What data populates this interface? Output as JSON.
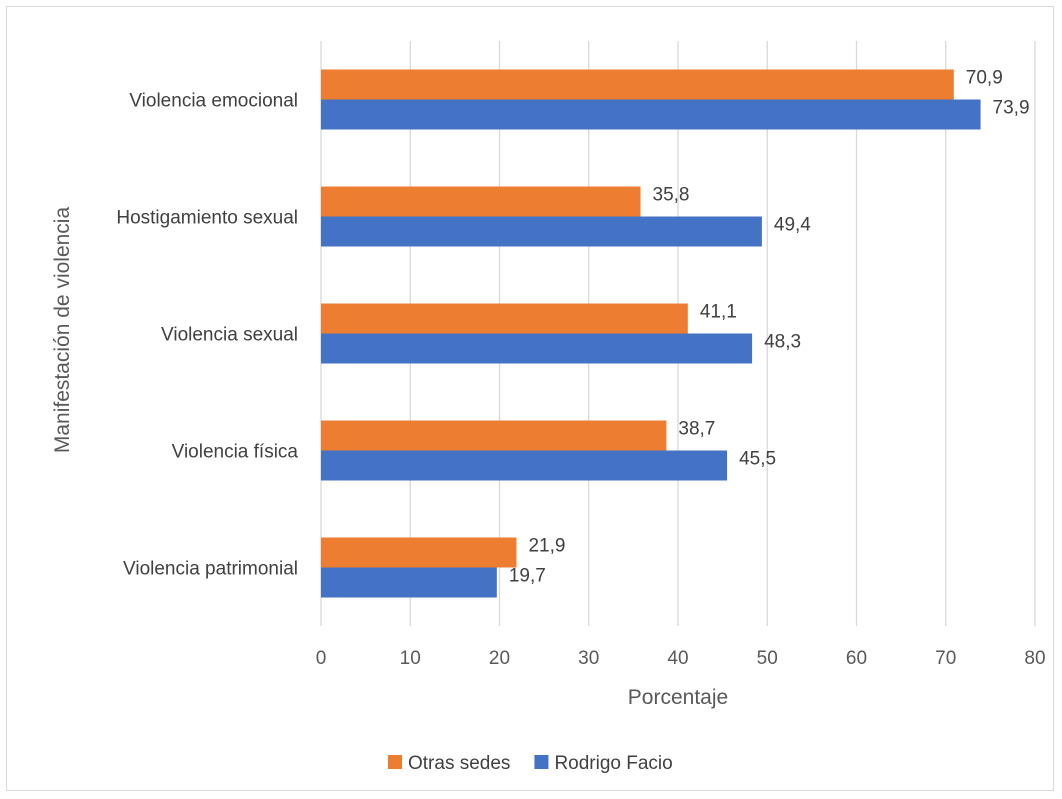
{
  "chart_data": {
    "type": "bar",
    "orientation": "horizontal",
    "categories": [
      "Violencia emocional",
      "Hostigamiento sexual",
      "Violencia sexual",
      "Violencia física",
      "Violencia patrimonial"
    ],
    "series": [
      {
        "name": "Otras sedes",
        "color": "#ED7D31",
        "values": [
          70.9,
          35.8,
          41.1,
          38.7,
          21.9
        ],
        "labels": [
          "70,9",
          "35,8",
          "41,1",
          "38,7",
          "21,9"
        ]
      },
      {
        "name": "Rodrigo Facio",
        "color": "#4472C4",
        "values": [
          73.9,
          49.4,
          48.3,
          45.5,
          19.7
        ],
        "labels": [
          "73,9",
          "49,4",
          "48,3",
          "45,5",
          "19,7"
        ]
      }
    ],
    "xlabel": "Porcentaje",
    "ylabel": "Manifestación de violencia",
    "xlim": [
      0,
      80
    ],
    "xticks": [
      0,
      10,
      20,
      30,
      40,
      50,
      60,
      70,
      80
    ],
    "grid": "vertical",
    "legend": "bottom"
  }
}
